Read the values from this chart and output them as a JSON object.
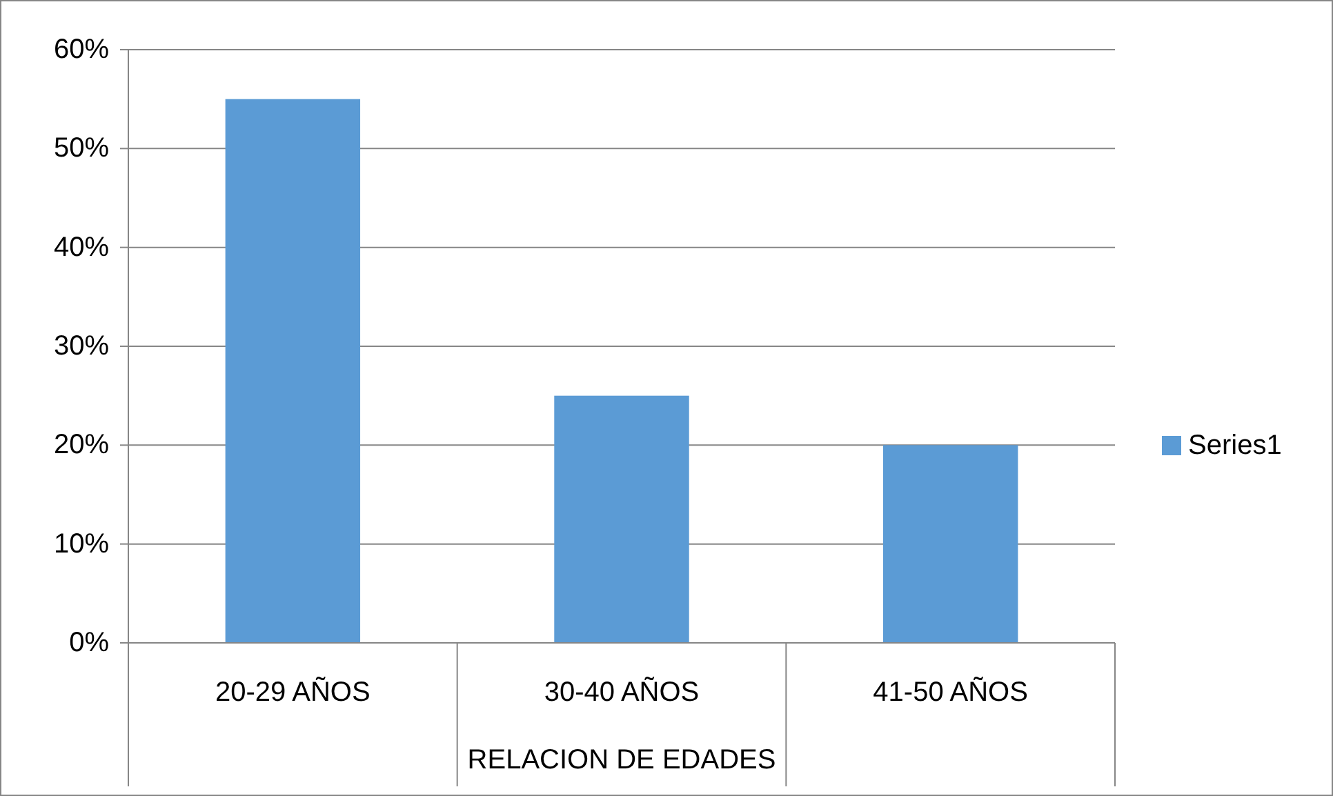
{
  "chart_data": {
    "type": "bar",
    "xlabel": "RELACION DE EDADES",
    "categories": [
      "20-29 AÑOS",
      "30-40 AÑOS",
      "41-50 AÑOS"
    ],
    "series": [
      {
        "name": "Series1",
        "color": "#5b9bd5",
        "values": [
          55,
          25,
          20
        ]
      }
    ],
    "ylim": [
      0,
      60
    ],
    "yticks": [
      {
        "value": 0,
        "label": "0%"
      },
      {
        "value": 10,
        "label": "10%"
      },
      {
        "value": 20,
        "label": "20%"
      },
      {
        "value": 30,
        "label": "30%"
      },
      {
        "value": 40,
        "label": "40%"
      },
      {
        "value": 50,
        "label": "50%"
      },
      {
        "value": 60,
        "label": "60%"
      }
    ],
    "grid": "y",
    "legend": "right"
  }
}
